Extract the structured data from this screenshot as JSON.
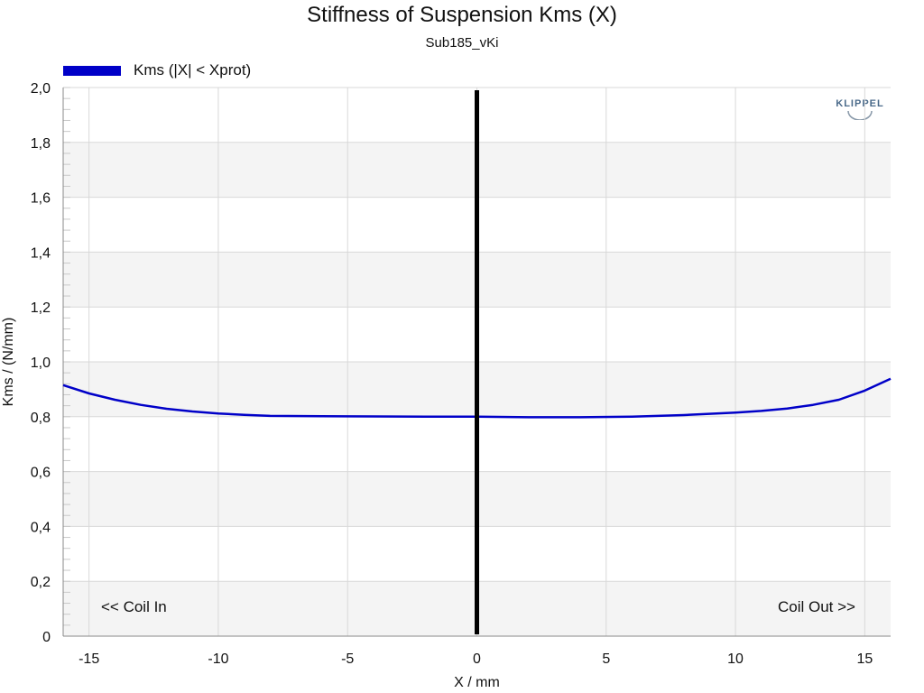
{
  "chart_data": {
    "type": "line",
    "title": "Stiffness of Suspension Kms (X)",
    "subtitle": "Sub185_vKi",
    "xlabel": "X / mm",
    "ylabel": "Kms / (N/mm)",
    "xlim": [
      -16,
      16
    ],
    "ylim": [
      0,
      2.0
    ],
    "xticks": [
      -15,
      -10,
      -5,
      0,
      5,
      10,
      15
    ],
    "xtick_labels": [
      "-15",
      "-10",
      "-5",
      "0",
      "5",
      "10",
      "15"
    ],
    "yticks": [
      0,
      0.2,
      0.4,
      0.6,
      0.8,
      1.0,
      1.2,
      1.4,
      1.6,
      1.8,
      2.0
    ],
    "ytick_labels": [
      "0",
      "0,2",
      "0,4",
      "0,6",
      "0,8",
      "1,0",
      "1,2",
      "1,4",
      "1,6",
      "1,8",
      "2,0"
    ],
    "grid": true,
    "legend_position": "top-left",
    "annotations": {
      "left": "<< Coil In",
      "right": "Coil Out >>"
    },
    "marker_line_x": 0,
    "series": [
      {
        "name": "Kms (|X| < Xprot)",
        "color": "#0000c8",
        "x": [
          -16,
          -15,
          -14,
          -13,
          -12,
          -11,
          -10,
          -9,
          -8,
          -6,
          -4,
          -2,
          0,
          2,
          4,
          6,
          8,
          10,
          11,
          12,
          13,
          14,
          15,
          16
        ],
        "y": [
          0.915,
          0.885,
          0.862,
          0.843,
          0.829,
          0.819,
          0.812,
          0.807,
          0.803,
          0.802,
          0.801,
          0.8,
          0.8,
          0.798,
          0.798,
          0.8,
          0.806,
          0.815,
          0.821,
          0.83,
          0.843,
          0.862,
          0.895,
          0.938
        ]
      }
    ]
  },
  "logo": {
    "text": "KLIPPEL"
  }
}
